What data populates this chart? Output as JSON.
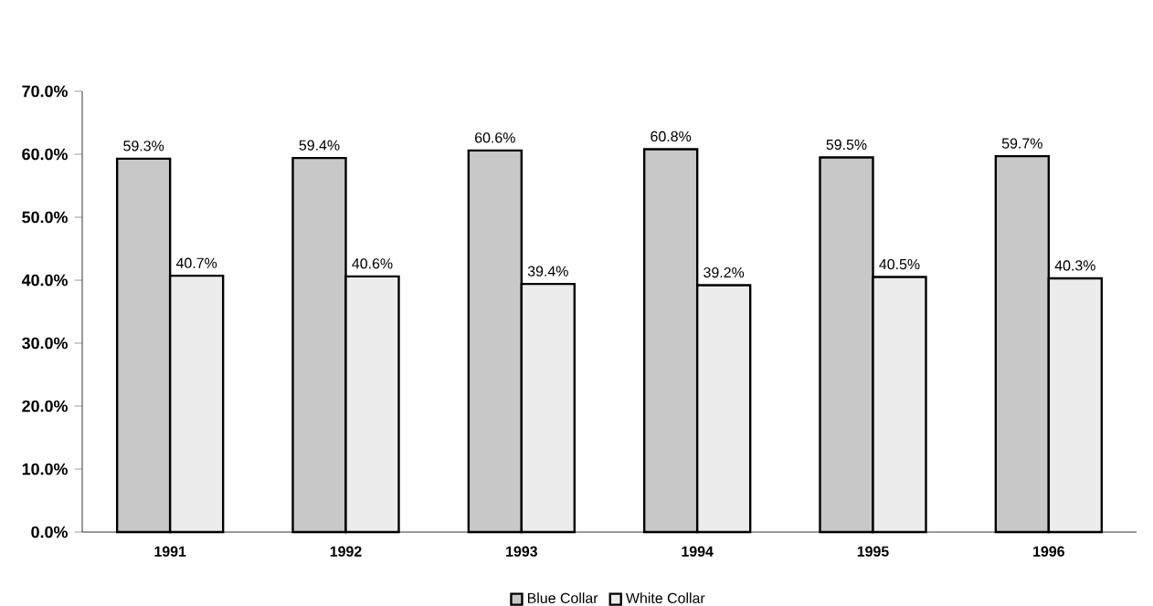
{
  "chart_data": {
    "type": "bar",
    "categories": [
      "1991",
      "1992",
      "1993",
      "1994",
      "1995",
      "1996"
    ],
    "series": [
      {
        "name": "Blue Collar",
        "color": "#c8c8c8",
        "values": [
          59.3,
          59.4,
          60.6,
          60.8,
          59.5,
          59.7
        ],
        "value_labels": [
          "59.3%",
          "59.4%",
          "60.6%",
          "60.8%",
          "59.5%",
          "59.7%"
        ]
      },
      {
        "name": "White Collar",
        "color": "#ececec",
        "values": [
          40.7,
          40.6,
          39.4,
          39.2,
          40.5,
          40.3
        ],
        "value_labels": [
          "40.7%",
          "40.6%",
          "39.4%",
          "39.2%",
          "40.5%",
          "40.3%"
        ]
      }
    ],
    "ylim": [
      0,
      70
    ],
    "yticks": [
      {
        "value": 0,
        "label": "0.0%"
      },
      {
        "value": 10,
        "label": "10.0%"
      },
      {
        "value": 20,
        "label": "20.0%"
      },
      {
        "value": 30,
        "label": "30.0%"
      },
      {
        "value": 40,
        "label": "40.0%"
      },
      {
        "value": 50,
        "label": "50.0%"
      },
      {
        "value": 60,
        "label": "60.0%"
      },
      {
        "value": 70,
        "label": "70.0%"
      }
    ],
    "grid": false,
    "legend": "bottom"
  }
}
